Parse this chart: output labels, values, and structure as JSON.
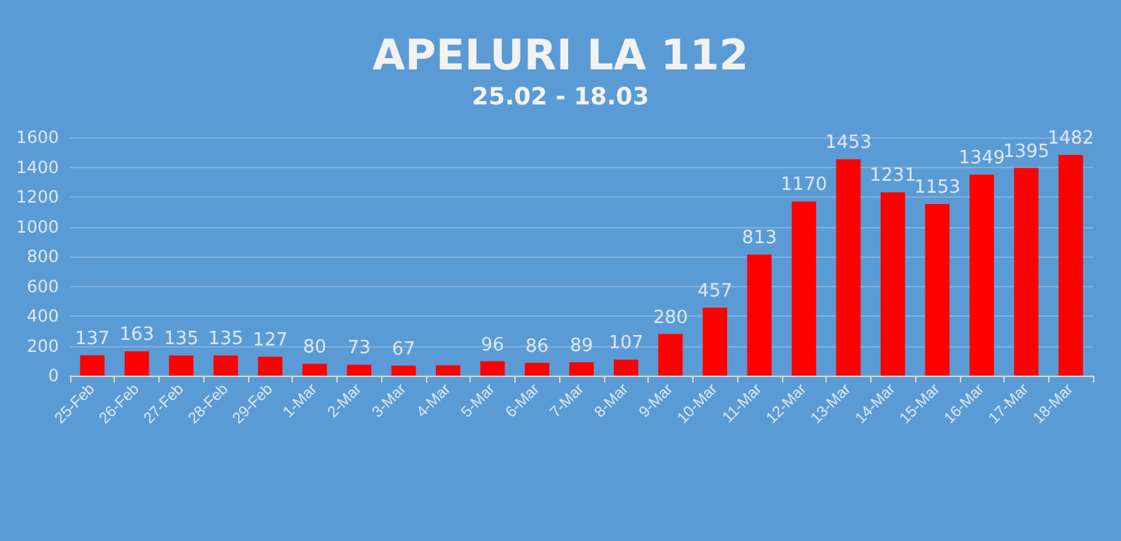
{
  "chart_data": {
    "type": "bar",
    "title": "APELURI LA 112",
    "subtitle": "25.02 - 18.03",
    "categories": [
      "25-Feb",
      "26-Feb",
      "27-Feb",
      "28-Feb",
      "29-Feb",
      "1-Mar",
      "2-Mar",
      "3-Mar",
      "4-Mar",
      "5-Mar",
      "6-Mar",
      "7-Mar",
      "8-Mar",
      "9-Mar",
      "10-Mar",
      "11-Mar",
      "12-Mar",
      "13-Mar",
      "14-Mar",
      "15-Mar",
      "16-Mar",
      "17-Mar",
      "18-Mar"
    ],
    "values": [
      137,
      163,
      135,
      135,
      127,
      80,
      73,
      67,
      70,
      96,
      86,
      89,
      107,
      280,
      457,
      813,
      1170,
      1453,
      1231,
      1153,
      1349,
      1395,
      1482
    ],
    "value_labels": [
      "137",
      "163",
      "135",
      "135",
      "127",
      "80",
      "73",
      "67",
      null,
      "96",
      "86",
      "89",
      "107",
      "280",
      "457",
      "813",
      "1170",
      "1453",
      "1231",
      "1153",
      "1349",
      "1395",
      "1482"
    ],
    "color": "#ff0000",
    "ylim": [
      0,
      1600
    ],
    "yticks": [
      0,
      200,
      400,
      600,
      800,
      1000,
      1200,
      1400,
      1600
    ],
    "grid": "y"
  }
}
